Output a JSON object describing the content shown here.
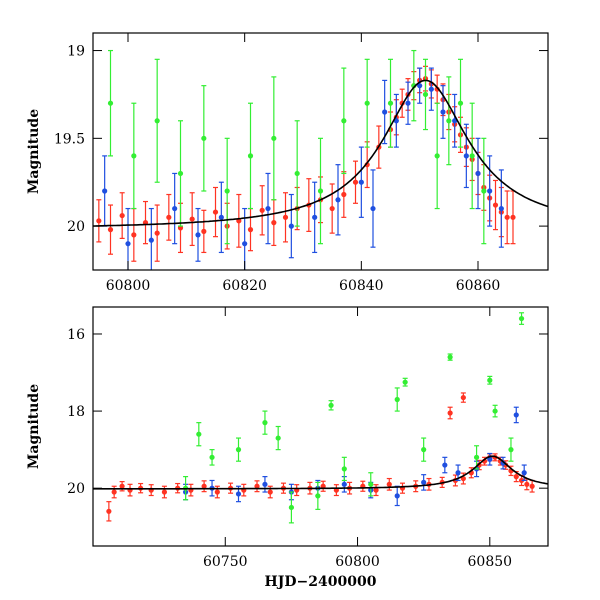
{
  "chart_data": [
    {
      "type": "scatter",
      "title": "",
      "xlabel": "",
      "ylabel": "Magnitude",
      "xlim": [
        60794,
        60872
      ],
      "ylim": [
        20.25,
        18.9
      ],
      "y_inverted": true,
      "x_ticks": [
        60800,
        60820,
        60840,
        60860
      ],
      "y_ticks": [
        19,
        19.5,
        20
      ],
      "tick_labels_x": [
        "60800",
        "60820",
        "60840",
        "60860"
      ],
      "tick_labels_y": [
        "19",
        "19.5",
        "20"
      ],
      "model_curve": {
        "color": "#000000",
        "baseline_mag": 20.02,
        "peak_mag": 19.17,
        "t_peak": 60851,
        "width_days": 9
      },
      "series": [
        {
          "color": "#ff3322",
          "points": [
            [
              60795,
              19.97,
              0.12
            ],
            [
              60797,
              20.02,
              0.14
            ],
            [
              60799,
              19.94,
              0.13
            ],
            [
              60801,
              20.05,
              0.15
            ],
            [
              60803,
              19.98,
              0.12
            ],
            [
              60805,
              20.04,
              0.16
            ],
            [
              60807,
              19.95,
              0.13
            ],
            [
              60809,
              20.01,
              0.14
            ],
            [
              60811,
              19.96,
              0.15
            ],
            [
              60813,
              20.03,
              0.12
            ],
            [
              60815,
              19.92,
              0.14
            ],
            [
              60817,
              20.0,
              0.13
            ],
            [
              60819,
              19.97,
              0.15
            ],
            [
              60821,
              20.02,
              0.12
            ],
            [
              60823,
              19.91,
              0.14
            ],
            [
              60825,
              19.98,
              0.13
            ],
            [
              60827,
              19.95,
              0.14
            ],
            [
              60829,
              19.9,
              0.12
            ],
            [
              60831,
              19.88,
              0.15
            ],
            [
              60833,
              19.85,
              0.13
            ],
            [
              60835,
              19.9,
              0.14
            ],
            [
              60837,
              19.82,
              0.13
            ],
            [
              60839,
              19.75,
              0.12
            ],
            [
              60841,
              19.65,
              0.13
            ],
            [
              60843,
              19.55,
              0.12
            ],
            [
              60845,
              19.45,
              0.1
            ],
            [
              60846,
              19.38,
              0.1
            ],
            [
              60847,
              19.3,
              0.08
            ],
            [
              60848,
              19.25,
              0.09
            ],
            [
              60849,
              19.2,
              0.08
            ],
            [
              60850,
              19.17,
              0.07
            ],
            [
              60851,
              19.16,
              0.07
            ],
            [
              60852,
              19.19,
              0.08
            ],
            [
              60853,
              19.22,
              0.08
            ],
            [
              60854,
              19.28,
              0.09
            ],
            [
              60855,
              19.35,
              0.1
            ],
            [
              60856,
              19.42,
              0.1
            ],
            [
              60857,
              19.48,
              0.1
            ],
            [
              60858,
              19.55,
              0.11
            ],
            [
              60859,
              19.62,
              0.12
            ],
            [
              60860,
              19.7,
              0.12
            ],
            [
              60861,
              19.78,
              0.13
            ],
            [
              60862,
              19.84,
              0.13
            ],
            [
              60863,
              19.88,
              0.14
            ],
            [
              60864,
              19.92,
              0.14
            ],
            [
              60865,
              19.95,
              0.15
            ],
            [
              60866,
              19.95,
              0.15
            ]
          ]
        },
        {
          "color": "#1f4fe0",
          "points": [
            [
              60796,
              19.8,
              0.2
            ],
            [
              60800,
              20.1,
              0.2
            ],
            [
              60804,
              20.08,
              0.18
            ],
            [
              60808,
              19.9,
              0.2
            ],
            [
              60812,
              20.05,
              0.15
            ],
            [
              60816,
              19.95,
              0.2
            ],
            [
              60820,
              20.1,
              0.2
            ],
            [
              60824,
              19.9,
              0.2
            ],
            [
              60828,
              20.0,
              0.18
            ],
            [
              60832,
              19.95,
              0.2
            ],
            [
              60836,
              19.85,
              0.2
            ],
            [
              60840,
              19.75,
              0.2
            ],
            [
              60842,
              19.9,
              0.22
            ],
            [
              60844,
              19.35,
              0.18
            ],
            [
              60846,
              19.4,
              0.15
            ],
            [
              60848,
              19.3,
              0.12
            ],
            [
              60850,
              19.2,
              0.1
            ],
            [
              60852,
              19.22,
              0.12
            ],
            [
              60854,
              19.35,
              0.15
            ],
            [
              60856,
              19.4,
              0.15
            ],
            [
              60858,
              19.6,
              0.18
            ],
            [
              60860,
              19.7,
              0.2
            ],
            [
              60862,
              19.8,
              0.2
            ],
            [
              60864,
              19.9,
              0.22
            ]
          ]
        },
        {
          "color": "#33ee33",
          "points": [
            [
              60797,
              19.3,
              0.3
            ],
            [
              60801,
              19.6,
              0.3
            ],
            [
              60805,
              19.4,
              0.35
            ],
            [
              60809,
              19.7,
              0.3
            ],
            [
              60813,
              19.5,
              0.3
            ],
            [
              60817,
              19.8,
              0.3
            ],
            [
              60821,
              19.6,
              0.3
            ],
            [
              60825,
              19.5,
              0.35
            ],
            [
              60829,
              19.7,
              0.3
            ],
            [
              60833,
              19.8,
              0.3
            ],
            [
              60837,
              19.4,
              0.3
            ],
            [
              60841,
              19.3,
              0.25
            ],
            [
              60845,
              19.3,
              0.25
            ],
            [
              60849,
              19.2,
              0.2
            ],
            [
              60851,
              19.25,
              0.2
            ],
            [
              60853,
              19.6,
              0.3
            ],
            [
              60855,
              19.4,
              0.25
            ],
            [
              60857,
              19.3,
              0.25
            ],
            [
              60859,
              19.6,
              0.3
            ],
            [
              60861,
              19.8,
              0.3
            ]
          ]
        }
      ]
    },
    {
      "type": "scatter",
      "title": "",
      "xlabel": "HJD−2400000",
      "ylabel": "Magnitude",
      "xlim": [
        60700,
        60872
      ],
      "ylim": [
        21.5,
        15.3
      ],
      "y_inverted": true,
      "x_ticks": [
        60750,
        60800,
        60850
      ],
      "y_ticks": [
        16,
        18,
        20
      ],
      "tick_labels_x": [
        "60750",
        "60800",
        "60850"
      ],
      "tick_labels_y": [
        "16",
        "18",
        "20"
      ],
      "model_curve": {
        "color": "#000000",
        "baseline_mag": 20.02,
        "peak_mag": 19.17,
        "t_peak": 60851,
        "width_days": 9
      },
      "series": [
        {
          "color": "#ff3322",
          "points": [
            [
              60706,
              20.6,
              0.25
            ],
            [
              60708,
              20.1,
              0.15
            ],
            [
              60711,
              19.95,
              0.12
            ],
            [
              60714,
              20.05,
              0.15
            ],
            [
              60718,
              20.0,
              0.12
            ],
            [
              60722,
              20.05,
              0.14
            ],
            [
              60727,
              20.1,
              0.15
            ],
            [
              60732,
              20.0,
              0.12
            ],
            [
              60737,
              20.05,
              0.15
            ],
            [
              60742,
              19.95,
              0.14
            ],
            [
              60747,
              20.1,
              0.15
            ],
            [
              60752,
              20.0,
              0.13
            ],
            [
              60757,
              20.05,
              0.15
            ],
            [
              60762,
              19.95,
              0.14
            ],
            [
              60767,
              20.1,
              0.15
            ],
            [
              60772,
              20.0,
              0.13
            ],
            [
              60777,
              20.05,
              0.14
            ],
            [
              60782,
              20.0,
              0.15
            ],
            [
              60787,
              19.95,
              0.13
            ],
            [
              60792,
              20.05,
              0.14
            ],
            [
              60797,
              20.0,
              0.15
            ],
            [
              60802,
              19.95,
              0.13
            ],
            [
              60807,
              20.05,
              0.14
            ],
            [
              60812,
              19.9,
              0.15
            ],
            [
              60817,
              20.0,
              0.13
            ],
            [
              60822,
              19.95,
              0.14
            ],
            [
              60827,
              19.9,
              0.15
            ],
            [
              60832,
              19.85,
              0.13
            ],
            [
              60837,
              19.8,
              0.14
            ],
            [
              60840,
              19.75,
              0.14
            ],
            [
              60843,
              19.6,
              0.13
            ],
            [
              60846,
              19.4,
              0.12
            ],
            [
              60848,
              19.3,
              0.1
            ],
            [
              60850,
              19.2,
              0.09
            ],
            [
              60852,
              19.2,
              0.09
            ],
            [
              60854,
              19.3,
              0.1
            ],
            [
              60856,
              19.4,
              0.11
            ],
            [
              60858,
              19.55,
              0.12
            ],
            [
              60860,
              19.7,
              0.13
            ],
            [
              60862,
              19.8,
              0.13
            ],
            [
              60864,
              19.9,
              0.14
            ],
            [
              60866,
              19.95,
              0.15
            ],
            [
              60840,
              17.65,
              0.12
            ],
            [
              60835,
              18.05,
              0.15
            ]
          ]
        },
        {
          "color": "#1f4fe0",
          "points": [
            [
              60735,
              20.1,
              0.2
            ],
            [
              60745,
              20.0,
              0.2
            ],
            [
              60755,
              20.15,
              0.2
            ],
            [
              60765,
              19.9,
              0.2
            ],
            [
              60775,
              20.1,
              0.2
            ],
            [
              60785,
              20.0,
              0.2
            ],
            [
              60795,
              19.9,
              0.2
            ],
            [
              60805,
              20.05,
              0.2
            ],
            [
              60815,
              20.2,
              0.25
            ],
            [
              60825,
              19.85,
              0.2
            ],
            [
              60833,
              19.4,
              0.2
            ],
            [
              60838,
              19.6,
              0.2
            ],
            [
              60845,
              19.5,
              0.2
            ],
            [
              60850,
              19.25,
              0.15
            ],
            [
              60855,
              19.35,
              0.15
            ],
            [
              60860,
              18.1,
              0.2
            ],
            [
              60863,
              19.6,
              0.2
            ]
          ]
        },
        {
          "color": "#33ee33",
          "points": [
            [
              60735,
              20.0,
              0.3
            ],
            [
              60740,
              18.6,
              0.3
            ],
            [
              60745,
              19.2,
              0.2
            ],
            [
              60755,
              19.0,
              0.3
            ],
            [
              60765,
              18.3,
              0.3
            ],
            [
              60770,
              18.7,
              0.3
            ],
            [
              60775,
              20.5,
              0.4
            ],
            [
              60785,
              20.2,
              0.35
            ],
            [
              60790,
              17.85,
              0.12
            ],
            [
              60795,
              19.5,
              0.3
            ],
            [
              60805,
              19.9,
              0.3
            ],
            [
              60815,
              17.7,
              0.3
            ],
            [
              60818,
              17.25,
              0.1
            ],
            [
              60825,
              19.0,
              0.3
            ],
            [
              60835,
              16.6,
              0.08
            ],
            [
              60845,
              19.2,
              0.3
            ],
            [
              60850,
              17.2,
              0.1
            ],
            [
              60852,
              18.0,
              0.15
            ],
            [
              60858,
              19.0,
              0.3
            ],
            [
              60862,
              15.6,
              0.15
            ]
          ]
        }
      ]
    }
  ]
}
